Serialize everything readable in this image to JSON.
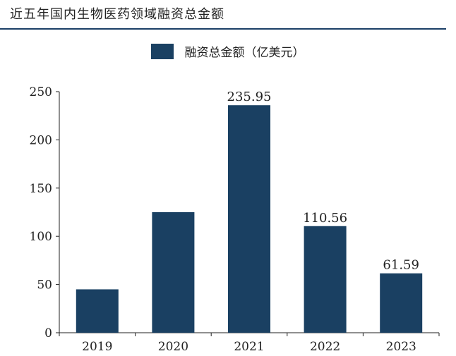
{
  "header": {
    "title": "近五年国内生物医药领域融资总金额"
  },
  "colors": {
    "bar": "#1a4062",
    "rule": "#1b3f66",
    "axis": "#222222"
  },
  "chart_data": {
    "type": "bar",
    "categories": [
      "2019",
      "2020",
      "2021",
      "2022",
      "2023"
    ],
    "series": [
      {
        "name": "融资总金额（亿美元）",
        "values": [
          45,
          125,
          235.95,
          110.56,
          61.59
        ]
      }
    ],
    "data_labels": [
      "",
      "",
      "235.95",
      "110.56",
      "61.59"
    ],
    "ylim": [
      0,
      250
    ],
    "yticks": [
      0,
      50,
      100,
      150,
      200,
      250
    ],
    "grid": false,
    "legend_position": "top-center"
  }
}
